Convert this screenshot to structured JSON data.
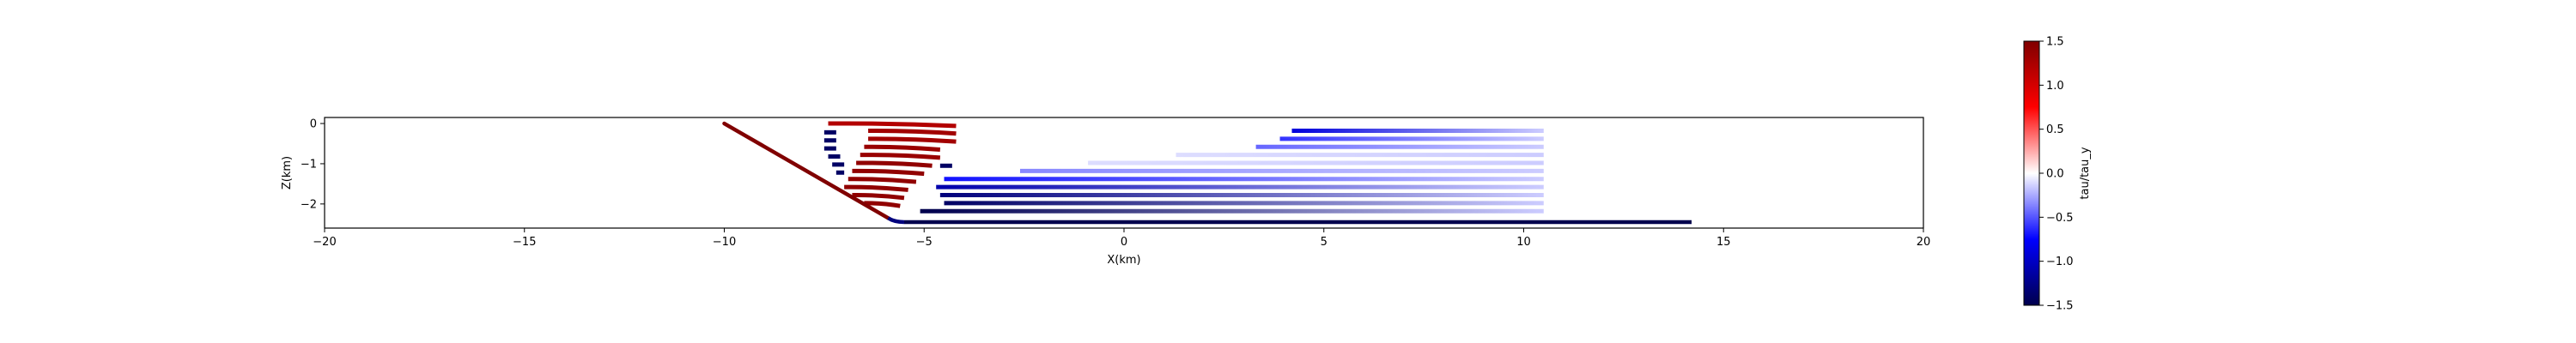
{
  "chart_data": {
    "type": "scatter",
    "title": "",
    "xlabel": "X(km)",
    "ylabel": "Z(km)",
    "xlim": [
      -20,
      20
    ],
    "ylim": [
      -2.6,
      0.15
    ],
    "xticks": [
      -20,
      -15,
      -10,
      -5,
      0,
      5,
      10,
      15,
      20
    ],
    "xtick_labels": [
      "−20",
      "−15",
      "−10",
      "−5",
      "0",
      "5",
      "10",
      "15",
      "20"
    ],
    "yticks": [
      0,
      -1,
      -2
    ],
    "ytick_labels": [
      "0",
      "−1",
      "−2"
    ],
    "grid": false,
    "colormap": "seismic",
    "colorbar": {
      "label": "tau/tau_y",
      "range": [
        -1.5,
        1.5
      ],
      "ticks": [
        1.5,
        1.0,
        0.5,
        0.0,
        -0.5,
        -1.0,
        -1.5
      ],
      "tick_labels": [
        "1.5",
        "1.0",
        "0.5",
        "0.0",
        "−0.5",
        "−1.0",
        "−1.5"
      ]
    },
    "fault_dipping": {
      "x": [
        -10.0,
        -5.9
      ],
      "z": [
        0.0,
        -2.35
      ],
      "value": 1.5
    },
    "fault_bend": {
      "x": [
        -5.9,
        -5.5
      ],
      "z": [
        -2.35,
        -2.45
      ],
      "value": -1.3
    },
    "fault_flat": {
      "x": [
        -5.5,
        14.2
      ],
      "z": [
        -2.45,
        -2.45
      ],
      "value": -1.5
    },
    "positive_strands": [
      {
        "x": [
          -7.4,
          -4.2
        ],
        "z": [
          0.0,
          -0.06
        ],
        "value": 1.2
      },
      {
        "x": [
          -6.4,
          -4.2
        ],
        "z": [
          -0.18,
          -0.25
        ],
        "value": 1.3
      },
      {
        "x": [
          -6.4,
          -4.2
        ],
        "z": [
          -0.38,
          -0.45
        ],
        "value": 1.3
      },
      {
        "x": [
          -6.5,
          -4.6
        ],
        "z": [
          -0.58,
          -0.65
        ],
        "value": 1.35
      },
      {
        "x": [
          -6.6,
          -4.6
        ],
        "z": [
          -0.78,
          -0.85
        ],
        "value": 1.35
      },
      {
        "x": [
          -6.7,
          -4.8
        ],
        "z": [
          -0.98,
          -1.05
        ],
        "value": 1.4
      },
      {
        "x": [
          -6.8,
          -5.0
        ],
        "z": [
          -1.18,
          -1.25
        ],
        "value": 1.4
      },
      {
        "x": [
          -6.9,
          -5.2
        ],
        "z": [
          -1.38,
          -1.45
        ],
        "value": 1.4
      },
      {
        "x": [
          -7.0,
          -5.4
        ],
        "z": [
          -1.58,
          -1.65
        ],
        "value": 1.4
      },
      {
        "x": [
          -6.8,
          -5.5
        ],
        "z": [
          -1.78,
          -1.85
        ],
        "value": 1.4
      },
      {
        "x": [
          -6.5,
          -5.6
        ],
        "z": [
          -1.98,
          -2.05
        ],
        "value": 1.4
      }
    ],
    "negative_dashes": [
      {
        "x": [
          -7.5,
          -7.2
        ],
        "z": [
          -0.22,
          -0.22
        ],
        "value": -1.4
      },
      {
        "x": [
          -7.5,
          -7.2
        ],
        "z": [
          -0.42,
          -0.42
        ],
        "value": -1.4
      },
      {
        "x": [
          -7.5,
          -7.2
        ],
        "z": [
          -0.62,
          -0.62
        ],
        "value": -1.4
      },
      {
        "x": [
          -7.4,
          -7.1
        ],
        "z": [
          -0.82,
          -0.82
        ],
        "value": -1.4
      },
      {
        "x": [
          -7.3,
          -7.0
        ],
        "z": [
          -1.02,
          -1.02
        ],
        "value": -1.4
      },
      {
        "x": [
          -7.2,
          -7.0
        ],
        "z": [
          -1.22,
          -1.22
        ],
        "value": -1.4
      },
      {
        "x": [
          -4.6,
          -4.3
        ],
        "z": [
          -1.05,
          -1.05
        ],
        "value": -1.4
      }
    ],
    "gradient_strands": [
      {
        "x": [
          4.2,
          10.5
        ],
        "z": [
          -0.18,
          -0.18
        ],
        "v_start": -0.9,
        "v_end": -0.15
      },
      {
        "x": [
          3.9,
          10.5
        ],
        "z": [
          -0.38,
          -0.38
        ],
        "v_start": -0.6,
        "v_end": -0.15
      },
      {
        "x": [
          3.3,
          10.5
        ],
        "z": [
          -0.58,
          -0.58
        ],
        "v_start": -0.45,
        "v_end": -0.15
      },
      {
        "x": [
          1.3,
          10.5
        ],
        "z": [
          -0.78,
          -0.78
        ],
        "v_start": -0.1,
        "v_end": -0.15
      },
      {
        "x": [
          -0.9,
          10.5
        ],
        "z": [
          -0.98,
          -0.98
        ],
        "v_start": -0.1,
        "v_end": -0.15
      },
      {
        "x": [
          -2.6,
          10.5
        ],
        "z": [
          -1.18,
          -1.18
        ],
        "v_start": -0.35,
        "v_end": -0.15
      },
      {
        "x": [
          -4.5,
          10.5
        ],
        "z": [
          -1.38,
          -1.38
        ],
        "v_start": -0.7,
        "v_end": -0.15
      },
      {
        "x": [
          -4.7,
          10.5
        ],
        "z": [
          -1.58,
          -1.58
        ],
        "v_start": -1.1,
        "v_end": -0.15
      },
      {
        "x": [
          -4.6,
          10.5
        ],
        "z": [
          -1.78,
          -1.78
        ],
        "v_start": -1.3,
        "v_end": -0.15
      },
      {
        "x": [
          -4.5,
          10.5
        ],
        "z": [
          -1.98,
          -1.98
        ],
        "v_start": -1.4,
        "v_end": -0.15
      },
      {
        "x": [
          -5.1,
          10.5
        ],
        "z": [
          -2.18,
          -2.18
        ],
        "v_start": -1.5,
        "v_end": -0.15
      }
    ]
  }
}
